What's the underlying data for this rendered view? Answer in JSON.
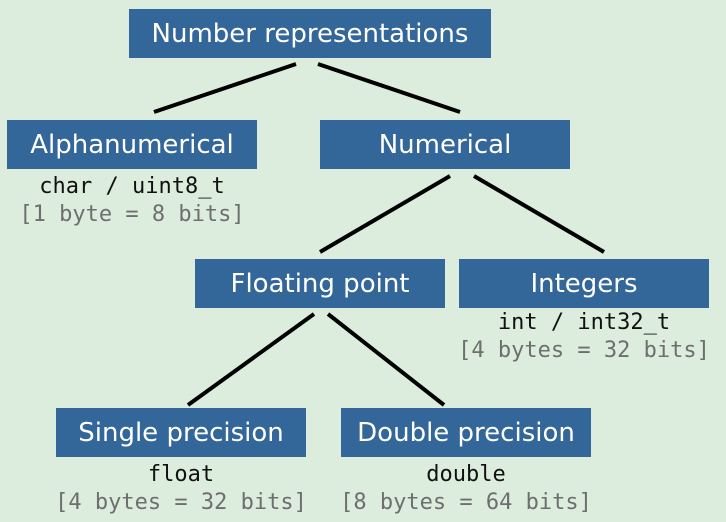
{
  "nodes": {
    "root": {
      "label": "Number representations"
    },
    "alphanumerical": {
      "label": "Alphanumerical",
      "type": "char / uint8_t",
      "size": "[1 byte = 8 bits]"
    },
    "numerical": {
      "label": "Numerical"
    },
    "floating_point": {
      "label": "Floating point"
    },
    "integers": {
      "label": "Integers",
      "type": "int / int32_t",
      "size": "[4 bytes = 32 bits]"
    },
    "single_precision": {
      "label": "Single precision",
      "type": "float",
      "size": "[4 bytes = 32 bits]"
    },
    "double_precision": {
      "label": "Double precision",
      "type": "double",
      "size": "[8 bytes = 64 bits]"
    }
  },
  "colors": {
    "background": "#dcedde",
    "box_fill": "#336699",
    "box_text": "#ffffff",
    "type_text": "#111111",
    "size_text": "#6e6e6e",
    "edge": "#000000"
  }
}
